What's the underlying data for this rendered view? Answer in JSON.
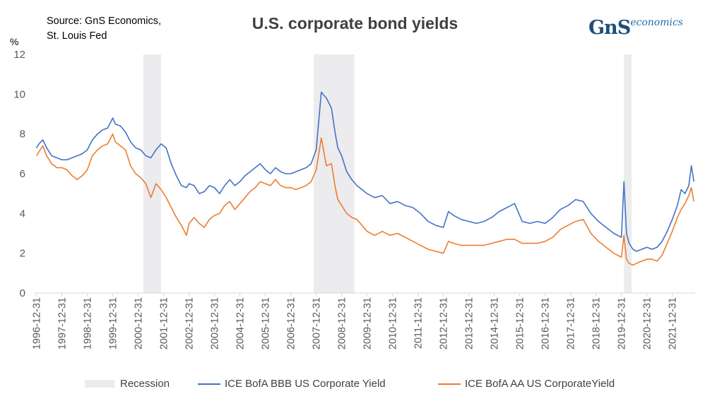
{
  "source_text": [
    "Source: GnS Economics,",
    "St. Louis Fed"
  ],
  "logo": {
    "main": "GnS",
    "sub": "economics"
  },
  "colors": {
    "bbb": "#4472c4",
    "aa": "#ed7d31",
    "recession": "#ecebee",
    "axis": "#d9d9d9",
    "text": "#595959"
  },
  "chart_data": {
    "type": "line",
    "title": "U.S. corporate bond yields",
    "ylabel": "%",
    "xlabel": "",
    "ylim": [
      0,
      12
    ],
    "yticks": [
      0,
      2,
      4,
      6,
      8,
      10,
      12
    ],
    "xlim": [
      1996.9,
      2022.9
    ],
    "x_tick_labels": [
      "1996-12-31",
      "1997-12-31",
      "1998-12-31",
      "1999-12-31",
      "2000-12-31",
      "2001-12-31",
      "2002-12-31",
      "2003-12-31",
      "2004-12-31",
      "2005-12-31",
      "2006-12-31",
      "2007-12-31",
      "2008-12-31",
      "2009-12-31",
      "2010-12-31",
      "2011-12-31",
      "2012-12-31",
      "2013-12-31",
      "2014-12-31",
      "2015-12-31",
      "2016-12-31",
      "2017-12-31",
      "2018-12-31",
      "2019-12-31",
      "2020-12-31",
      "2021-12-31"
    ],
    "recessions": [
      [
        2001.2,
        2001.9
      ],
      [
        2007.9,
        2009.5
      ],
      [
        2020.1,
        2020.4
      ]
    ],
    "legend_position": "bottom",
    "series": [
      {
        "name": "ICE BofA BBB US Corporate Yield",
        "color": "#4472c4",
        "x": [
          1997.0,
          1997.1,
          1997.25,
          1997.4,
          1997.6,
          1997.8,
          1998.0,
          1998.2,
          1998.4,
          1998.6,
          1998.8,
          1999.0,
          1999.2,
          1999.4,
          1999.6,
          1999.8,
          2000.0,
          2000.1,
          2000.3,
          2000.5,
          2000.7,
          2000.9,
          2001.1,
          2001.3,
          2001.5,
          2001.7,
          2001.9,
          2002.1,
          2002.3,
          2002.5,
          2002.7,
          2002.9,
          2003.0,
          2003.2,
          2003.4,
          2003.6,
          2003.8,
          2004.0,
          2004.2,
          2004.4,
          2004.6,
          2004.8,
          2005.0,
          2005.2,
          2005.4,
          2005.6,
          2005.8,
          2006.0,
          2006.2,
          2006.4,
          2006.6,
          2006.8,
          2007.0,
          2007.2,
          2007.4,
          2007.6,
          2007.8,
          2008.0,
          2008.2,
          2008.4,
          2008.6,
          2008.75,
          2008.85,
          2009.0,
          2009.2,
          2009.4,
          2009.6,
          2009.8,
          2010.0,
          2010.3,
          2010.6,
          2010.9,
          2011.2,
          2011.5,
          2011.8,
          2012.1,
          2012.4,
          2012.7,
          2013.0,
          2013.2,
          2013.4,
          2013.7,
          2014.0,
          2014.3,
          2014.6,
          2014.9,
          2015.2,
          2015.5,
          2015.8,
          2016.1,
          2016.4,
          2016.7,
          2017.0,
          2017.3,
          2017.6,
          2017.9,
          2018.2,
          2018.5,
          2018.8,
          2019.1,
          2019.4,
          2019.7,
          2020.0,
          2020.1,
          2020.2,
          2020.3,
          2020.45,
          2020.6,
          2020.8,
          2021.0,
          2021.2,
          2021.4,
          2021.6,
          2021.8,
          2022.0,
          2022.2,
          2022.35,
          2022.5,
          2022.65,
          2022.75,
          2022.85
        ],
        "values": [
          7.3,
          7.5,
          7.7,
          7.3,
          6.9,
          6.8,
          6.7,
          6.7,
          6.8,
          6.9,
          7.0,
          7.2,
          7.7,
          8.0,
          8.2,
          8.3,
          8.8,
          8.5,
          8.4,
          8.1,
          7.6,
          7.3,
          7.2,
          6.9,
          6.8,
          7.2,
          7.5,
          7.3,
          6.5,
          5.9,
          5.4,
          5.3,
          5.5,
          5.4,
          5.0,
          5.1,
          5.4,
          5.3,
          5.0,
          5.4,
          5.7,
          5.4,
          5.6,
          5.9,
          6.1,
          6.3,
          6.5,
          6.2,
          6.0,
          6.3,
          6.1,
          6.0,
          6.0,
          6.1,
          6.2,
          6.3,
          6.5,
          7.2,
          10.1,
          9.8,
          9.3,
          8.0,
          7.3,
          6.9,
          6.1,
          5.7,
          5.4,
          5.2,
          5.0,
          4.8,
          4.9,
          4.5,
          4.6,
          4.4,
          4.3,
          4.0,
          3.6,
          3.4,
          3.3,
          4.1,
          3.9,
          3.7,
          3.6,
          3.5,
          3.6,
          3.8,
          4.1,
          4.3,
          4.5,
          3.6,
          3.5,
          3.6,
          3.5,
          3.8,
          4.2,
          4.4,
          4.7,
          4.6,
          4.0,
          3.6,
          3.3,
          3.0,
          2.8,
          5.6,
          3.0,
          2.5,
          2.2,
          2.1,
          2.2,
          2.3,
          2.2,
          2.3,
          2.6,
          3.1,
          3.7,
          4.4,
          5.2,
          5.0,
          5.4,
          6.4,
          5.6
        ]
      },
      {
        "name": "ICE BofA AA US CorporateYield",
        "color": "#ed7d31",
        "x": [
          1997.0,
          1997.1,
          1997.25,
          1997.4,
          1997.6,
          1997.8,
          1998.0,
          1998.2,
          1998.4,
          1998.6,
          1998.8,
          1999.0,
          1999.2,
          1999.4,
          1999.6,
          1999.8,
          2000.0,
          2000.1,
          2000.3,
          2000.5,
          2000.7,
          2000.9,
          2001.1,
          2001.3,
          2001.5,
          2001.7,
          2001.9,
          2002.1,
          2002.3,
          2002.5,
          2002.7,
          2002.9,
          2003.0,
          2003.2,
          2003.4,
          2003.6,
          2003.8,
          2004.0,
          2004.2,
          2004.4,
          2004.6,
          2004.8,
          2005.0,
          2005.2,
          2005.4,
          2005.6,
          2005.8,
          2006.0,
          2006.2,
          2006.4,
          2006.6,
          2006.8,
          2007.0,
          2007.2,
          2007.4,
          2007.6,
          2007.8,
          2008.0,
          2008.2,
          2008.4,
          2008.6,
          2008.75,
          2008.85,
          2009.0,
          2009.2,
          2009.4,
          2009.6,
          2009.8,
          2010.0,
          2010.3,
          2010.6,
          2010.9,
          2011.2,
          2011.5,
          2011.8,
          2012.1,
          2012.4,
          2012.7,
          2013.0,
          2013.2,
          2013.4,
          2013.7,
          2014.0,
          2014.3,
          2014.6,
          2014.9,
          2015.2,
          2015.5,
          2015.8,
          2016.1,
          2016.4,
          2016.7,
          2017.0,
          2017.3,
          2017.6,
          2017.9,
          2018.2,
          2018.5,
          2018.8,
          2019.1,
          2019.4,
          2019.7,
          2020.0,
          2020.1,
          2020.2,
          2020.3,
          2020.45,
          2020.6,
          2020.8,
          2021.0,
          2021.2,
          2021.4,
          2021.6,
          2021.8,
          2022.0,
          2022.2,
          2022.35,
          2022.5,
          2022.65,
          2022.75,
          2022.85
        ],
        "values": [
          6.9,
          7.1,
          7.4,
          6.9,
          6.5,
          6.3,
          6.3,
          6.2,
          5.9,
          5.7,
          5.9,
          6.2,
          6.9,
          7.2,
          7.4,
          7.5,
          8.0,
          7.6,
          7.4,
          7.2,
          6.4,
          6.0,
          5.8,
          5.5,
          4.8,
          5.5,
          5.2,
          4.8,
          4.3,
          3.8,
          3.4,
          2.9,
          3.5,
          3.8,
          3.5,
          3.3,
          3.7,
          3.9,
          4.0,
          4.4,
          4.6,
          4.2,
          4.5,
          4.8,
          5.1,
          5.3,
          5.6,
          5.5,
          5.4,
          5.7,
          5.4,
          5.3,
          5.3,
          5.2,
          5.3,
          5.4,
          5.6,
          6.2,
          7.8,
          6.4,
          6.5,
          5.3,
          4.7,
          4.4,
          4.0,
          3.8,
          3.7,
          3.4,
          3.1,
          2.9,
          3.1,
          2.9,
          3.0,
          2.8,
          2.6,
          2.4,
          2.2,
          2.1,
          2.0,
          2.6,
          2.5,
          2.4,
          2.4,
          2.4,
          2.4,
          2.5,
          2.6,
          2.7,
          2.7,
          2.5,
          2.5,
          2.5,
          2.6,
          2.8,
          3.2,
          3.4,
          3.6,
          3.7,
          3.0,
          2.6,
          2.3,
          2.0,
          1.8,
          2.9,
          1.7,
          1.5,
          1.4,
          1.5,
          1.6,
          1.7,
          1.7,
          1.6,
          1.9,
          2.5,
          3.1,
          3.8,
          4.2,
          4.5,
          4.9,
          5.3,
          4.6
        ]
      }
    ]
  },
  "legend": {
    "recession_label": "Recession",
    "bbb_label": "ICE BofA BBB US Corporate Yield",
    "aa_label": "ICE BofA AA US CorporateYield"
  }
}
